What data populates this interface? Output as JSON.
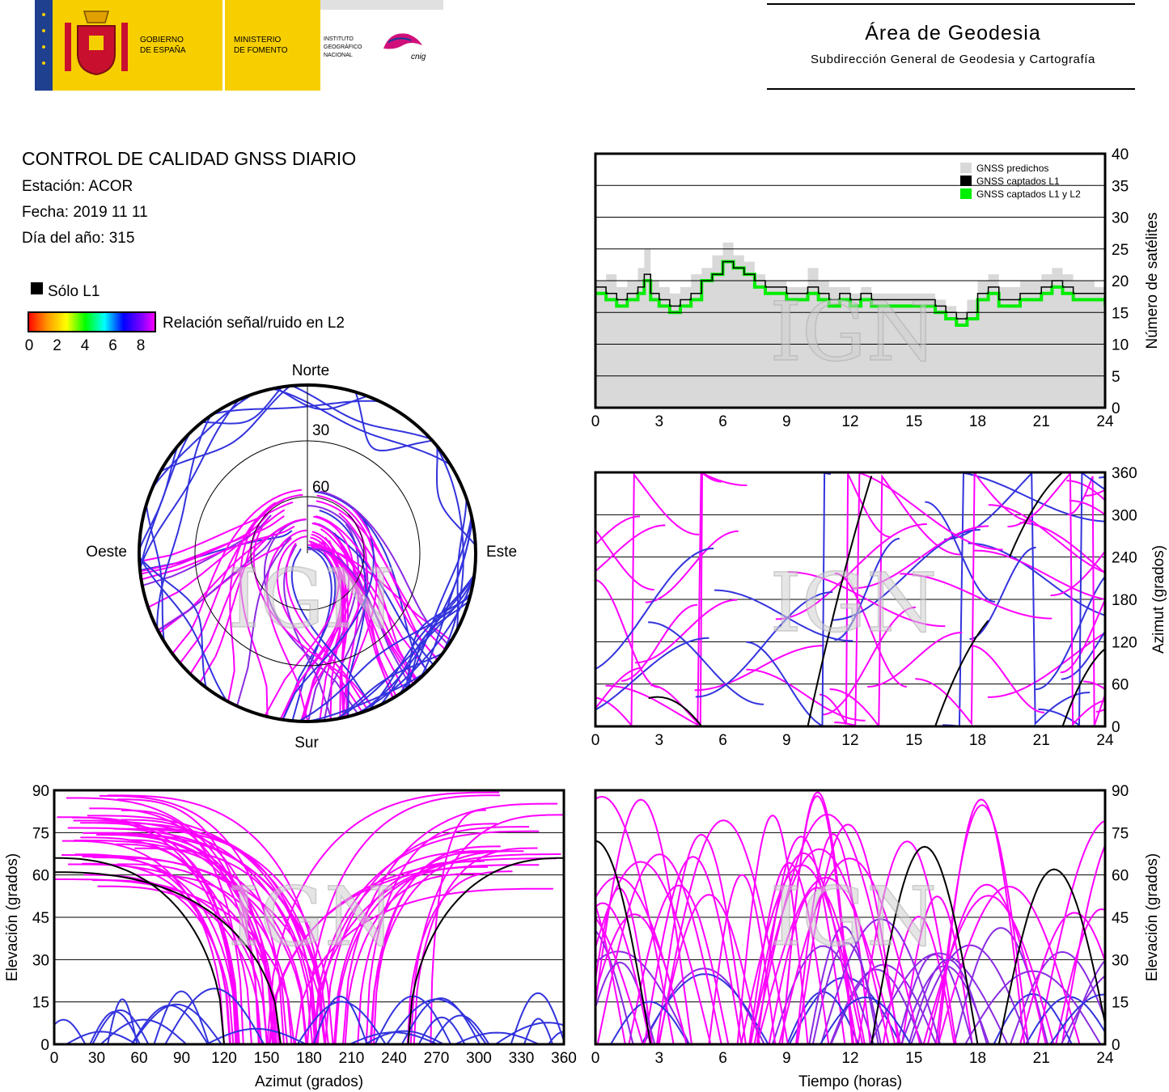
{
  "header": {
    "logo_gov_line1": "GOBIERNO",
    "logo_gov_line2": "DE ESPAÑA",
    "logo_min_line1": "MINISTERIO",
    "logo_min_line2": "DE FOMENTO",
    "logo_inst_line1": "INSTITUTO",
    "logo_inst_line2": "GEOGRÁFICO",
    "logo_inst_line3": "NACIONAL",
    "logo_cnig": "cnig",
    "area_title": "Área de Geodesia",
    "area_subtitle": "Subdirección General de Geodesia y Cartografía"
  },
  "info": {
    "title": "CONTROL DE CALIDAD GNSS DIARIO",
    "station": "Estación: ACOR",
    "date": "Fecha: 2019 11 11",
    "doy": "Día del año: 315"
  },
  "legend": {
    "only_l1": "Sólo L1",
    "snr_label": "Relación señal/ruido en L2",
    "snr_ticks": [
      "0",
      "2",
      "4",
      "6",
      "8"
    ]
  },
  "watermark": "IGN",
  "colors": {
    "magenta": "#ff00ff",
    "blue": "#3333dd",
    "purple": "#8a2be2",
    "green": "#00ee00",
    "predicted": "#d9d9d9"
  },
  "chart_data": [
    {
      "type": "area",
      "id": "satellites",
      "ylabel": "Número de satélites",
      "xlim": [
        0,
        24
      ],
      "ylim": [
        0,
        40
      ],
      "x_ticks": [
        "0",
        "3",
        "6",
        "9",
        "12",
        "15",
        "18",
        "21",
        "24"
      ],
      "y_ticks": [
        "0",
        "5",
        "10",
        "15",
        "20",
        "25",
        "30",
        "35",
        "40"
      ],
      "grid": true,
      "legend_position": "top-right",
      "legend": [
        "GNSS predichos",
        "GNSS captados L1",
        "GNSS captados L1 y L2"
      ],
      "series": [
        {
          "name": "GNSS predichos",
          "x": [
            0,
            0.5,
            1,
            1.5,
            2,
            2.3,
            2.6,
            3,
            3.5,
            4,
            4.5,
            5,
            5.5,
            6,
            6.5,
            7,
            7.5,
            8,
            8.5,
            9,
            9.5,
            10,
            10.5,
            11,
            11.5,
            12,
            12.5,
            13,
            13.5,
            14,
            14.5,
            15,
            15.5,
            16,
            16.5,
            17,
            17.5,
            18,
            18.5,
            19,
            19.5,
            20,
            20.5,
            21,
            21.5,
            22,
            22.5,
            23,
            23.5,
            24
          ],
          "values": [
            20,
            21,
            19,
            20,
            22,
            25,
            20,
            19,
            18,
            19,
            21,
            22,
            24,
            26,
            24,
            23,
            21,
            20,
            20,
            19,
            19,
            22,
            20,
            19,
            19,
            18,
            19,
            18,
            18,
            18,
            18,
            18,
            18,
            17,
            16,
            15,
            17,
            20,
            21,
            19,
            19,
            20,
            20,
            21,
            22,
            21,
            20,
            20,
            19,
            19
          ]
        },
        {
          "name": "GNSS captados L1",
          "x": [
            0,
            0.5,
            1,
            1.5,
            2,
            2.3,
            2.6,
            3,
            3.5,
            4,
            4.5,
            5,
            5.5,
            6,
            6.5,
            7,
            7.5,
            8,
            8.5,
            9,
            9.5,
            10,
            10.5,
            11,
            11.5,
            12,
            12.5,
            13,
            13.5,
            14,
            14.5,
            15,
            15.5,
            16,
            16.5,
            17,
            17.5,
            18,
            18.5,
            19,
            19.5,
            20,
            20.5,
            21,
            21.5,
            22,
            22.5,
            23,
            23.5,
            24
          ],
          "values": [
            19,
            18,
            17,
            18,
            19,
            21,
            18,
            17,
            16,
            17,
            18,
            20,
            21,
            23,
            22,
            21,
            20,
            19,
            19,
            18,
            18,
            19,
            18,
            17,
            18,
            17,
            18,
            17,
            17,
            17,
            17,
            17,
            17,
            16,
            15,
            14,
            15,
            18,
            19,
            17,
            17,
            18,
            18,
            19,
            20,
            19,
            18,
            18,
            18,
            17
          ]
        },
        {
          "name": "GNSS captados L1 y L2",
          "x": [
            0,
            0.5,
            1,
            1.5,
            2,
            2.3,
            2.6,
            3,
            3.5,
            4,
            4.5,
            5,
            5.5,
            6,
            6.5,
            7,
            7.5,
            8,
            8.5,
            9,
            9.5,
            10,
            10.5,
            11,
            11.5,
            12,
            12.5,
            13,
            13.5,
            14,
            14.5,
            15,
            15.5,
            16,
            16.5,
            17,
            17.5,
            18,
            18.5,
            19,
            19.5,
            20,
            20.5,
            21,
            21.5,
            22,
            22.5,
            23,
            23.5,
            24
          ],
          "values": [
            18,
            17,
            16,
            17,
            18,
            20,
            17,
            16,
            15,
            16,
            17,
            20,
            21,
            23,
            22,
            21,
            19,
            18,
            18,
            17,
            17,
            18,
            17,
            16,
            17,
            16,
            17,
            16,
            16,
            16,
            16,
            16,
            16,
            15,
            14,
            13,
            14,
            17,
            18,
            16,
            16,
            17,
            17,
            18,
            19,
            18,
            17,
            17,
            17,
            16
          ]
        }
      ]
    },
    {
      "type": "scatter",
      "id": "polar",
      "cardinal_labels": {
        "north": "Norte",
        "south": "Sur",
        "east": "Este",
        "west": "Oeste"
      },
      "ring_labels": [
        "30",
        "60"
      ],
      "color_encoding": "signal-to-noise in L2"
    },
    {
      "type": "scatter",
      "id": "azimuth-time",
      "ylabel": "Azimut (grados)",
      "xlim": [
        0,
        24
      ],
      "ylim": [
        0,
        360
      ],
      "x_ticks": [
        "0",
        "3",
        "6",
        "9",
        "12",
        "15",
        "18",
        "21",
        "24"
      ],
      "y_ticks": [
        "0",
        "60",
        "120",
        "180",
        "240",
        "300",
        "360"
      ],
      "grid": true
    },
    {
      "type": "scatter",
      "id": "elevation-azimuth",
      "xlabel": "Azimut (grados)",
      "ylabel": "Elevación (grados)",
      "xlim": [
        0,
        360
      ],
      "ylim": [
        0,
        90
      ],
      "x_ticks": [
        "0",
        "30",
        "60",
        "90",
        "120",
        "150",
        "180",
        "210",
        "240",
        "270",
        "300",
        "330",
        "360"
      ],
      "y_ticks": [
        "0",
        "15",
        "30",
        "45",
        "60",
        "75",
        "90"
      ],
      "grid": true
    },
    {
      "type": "scatter",
      "id": "elevation-time",
      "xlabel": "Tiempo (horas)",
      "ylabel": "Elevación (grados)",
      "xlim": [
        0,
        24
      ],
      "ylim": [
        0,
        90
      ],
      "x_ticks": [
        "0",
        "3",
        "6",
        "9",
        "12",
        "15",
        "18",
        "21",
        "24"
      ],
      "y_ticks": [
        "0",
        "15",
        "30",
        "45",
        "60",
        "75",
        "90"
      ],
      "grid": true
    }
  ]
}
